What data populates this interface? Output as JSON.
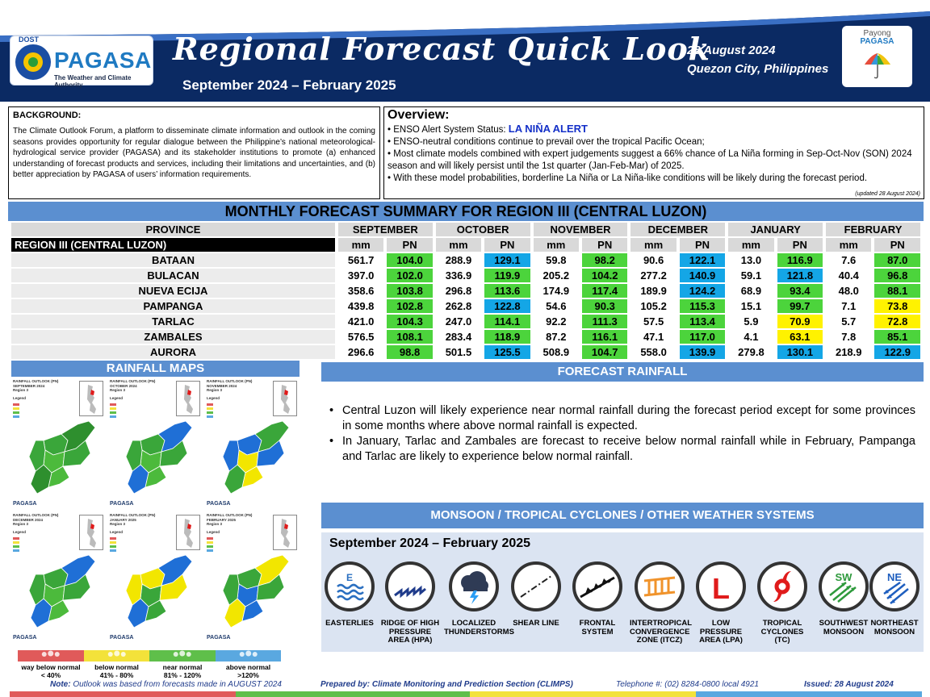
{
  "header": {
    "logo_dost": "DOST",
    "logo_name": "PAGASA",
    "logo_tagline": "The Weather and Climate Authority",
    "title": "Regional Forecast Quick Look",
    "subtitle": "September 2024 – February 2025",
    "date": "28 August 2024",
    "place": "Quezon City, Philippines",
    "payong_line1": "Payong",
    "payong_line2": "PAGASA"
  },
  "background": {
    "title": "BACKGROUND:",
    "text": "The Climate Outlook Forum, a platform to disseminate climate information and outlook in the coming seasons provides opportunity for regular dialogue between the Philippine’s national meteorological-hydrological service provider (PAGASA) and its stakeholder institutions to promote (a) enhanced understanding of forecast products and services, including their limitations and uncertainties, and (b) better appreciation by PAGASA of users’ information requirements."
  },
  "overview": {
    "title": "Overview:",
    "enso_label": "ENSO Alert System Status: ",
    "enso_status": "LA NIÑA ALERT",
    "items": [
      "ENSO-neutral conditions continue to prevail over the tropical Pacific Ocean;",
      "Most climate models combined with expert judgements suggest a 66% chance of La Niña forming in Sep-Oct-Nov (SON) 2024 season and will likely persist until the 1st quarter (Jan-Feb-Mar) of 2025.",
      "With these model probabilities, borderline La Niña or La Niña-like conditions will be likely during the forecast period."
    ],
    "updated": "(updated 28 August 2024)"
  },
  "monthly": {
    "title": "MONTHLY FORECAST SUMMARY FOR REGION III (CENTRAL LUZON)",
    "province_header": "PROVINCE",
    "region_label": "REGION III (CENTRAL LUZON)",
    "months": [
      "SEPTEMBER",
      "OCTOBER",
      "NOVEMBER",
      "DECEMBER",
      "JANUARY",
      "FEBRUARY"
    ],
    "unit_mm": "mm",
    "unit_pn": "PN",
    "rows": [
      {
        "province": "BATAAN",
        "values": [
          [
            "561.7",
            "104.0",
            "g"
          ],
          [
            "288.9",
            "129.1",
            "b"
          ],
          [
            "59.8",
            "98.2",
            "g"
          ],
          [
            "90.6",
            "122.1",
            "b"
          ],
          [
            "13.0",
            "116.9",
            "g"
          ],
          [
            "7.6",
            "87.0",
            "g"
          ]
        ]
      },
      {
        "province": "BULACAN",
        "values": [
          [
            "397.0",
            "102.0",
            "g"
          ],
          [
            "336.9",
            "119.9",
            "g"
          ],
          [
            "205.2",
            "104.2",
            "g"
          ],
          [
            "277.2",
            "140.9",
            "b"
          ],
          [
            "59.1",
            "121.8",
            "b"
          ],
          [
            "40.4",
            "96.8",
            "g"
          ]
        ]
      },
      {
        "province": "NUEVA ECIJA",
        "values": [
          [
            "358.6",
            "103.8",
            "g"
          ],
          [
            "296.8",
            "113.6",
            "g"
          ],
          [
            "174.9",
            "117.4",
            "g"
          ],
          [
            "189.9",
            "124.2",
            "b"
          ],
          [
            "68.9",
            "93.4",
            "g"
          ],
          [
            "48.0",
            "88.1",
            "g"
          ]
        ]
      },
      {
        "province": "PAMPANGA",
        "values": [
          [
            "439.8",
            "102.8",
            "g"
          ],
          [
            "262.8",
            "122.8",
            "b"
          ],
          [
            "54.6",
            "90.3",
            "g"
          ],
          [
            "105.2",
            "115.3",
            "g"
          ],
          [
            "15.1",
            "99.7",
            "g"
          ],
          [
            "7.1",
            "73.8",
            "y"
          ]
        ]
      },
      {
        "province": "TARLAC",
        "values": [
          [
            "421.0",
            "104.3",
            "g"
          ],
          [
            "247.0",
            "114.1",
            "g"
          ],
          [
            "92.2",
            "111.3",
            "g"
          ],
          [
            "57.5",
            "113.4",
            "g"
          ],
          [
            "5.9",
            "70.9",
            "y"
          ],
          [
            "5.7",
            "72.8",
            "y"
          ]
        ]
      },
      {
        "province": "ZAMBALES",
        "values": [
          [
            "576.5",
            "108.1",
            "g"
          ],
          [
            "283.4",
            "118.9",
            "g"
          ],
          [
            "87.2",
            "116.1",
            "g"
          ],
          [
            "47.1",
            "117.0",
            "g"
          ],
          [
            "4.1",
            "63.1",
            "y"
          ],
          [
            "7.8",
            "85.1",
            "g"
          ]
        ]
      },
      {
        "province": "AURORA",
        "values": [
          [
            "296.6",
            "98.8",
            "g"
          ],
          [
            "501.5",
            "125.5",
            "b"
          ],
          [
            "508.9",
            "104.7",
            "g"
          ],
          [
            "558.0",
            "139.9",
            "b"
          ],
          [
            "279.8",
            "130.1",
            "b"
          ],
          [
            "218.9",
            "122.9",
            "b"
          ]
        ]
      }
    ]
  },
  "rainfall_maps": {
    "title": "RAINFALL MAPS",
    "maps": [
      {
        "head1": "RAINFALL OUTLOOK (PN)",
        "head2": "SEPTEMBER 2024",
        "head3": "Region 3",
        "legend": "Legend",
        "foot": "PAGASA",
        "palette": [
          "#3aa63a",
          "#2e8f2e",
          "#4cba3c"
        ]
      },
      {
        "head1": "RAINFALL OUTLOOK (PN)",
        "head2": "OCTOBER 2024",
        "head3": "Region 3",
        "legend": "Legend",
        "foot": "PAGASA",
        "palette": [
          "#3aa63a",
          "#1f6fd6",
          "#4cba3c"
        ]
      },
      {
        "head1": "RAINFALL OUTLOOK (PN)",
        "head2": "NOVEMBER 2024",
        "head3": "Region 3",
        "legend": "Legend",
        "foot": "PAGASA",
        "palette": [
          "#1f6fd6",
          "#3aa63a",
          "#f2e600"
        ]
      },
      {
        "head1": "RAINFALL OUTLOOK (PN)",
        "head2": "DECEMBER 2024",
        "head3": "Region 3",
        "legend": "Legend",
        "foot": "PAGASA",
        "palette": [
          "#3aa63a",
          "#1f6fd6",
          "#4cba3c"
        ]
      },
      {
        "head1": "RAINFALL OUTLOOK (PN)",
        "head2": "JANUARY 2025",
        "head3": "Region 3",
        "legend": "Legend",
        "foot": "PAGASA",
        "palette": [
          "#f2e600",
          "#1f6fd6",
          "#3aa63a"
        ]
      },
      {
        "head1": "RAINFALL OUTLOOK (PN)",
        "head2": "FEBRUARY 2025",
        "head3": "Region 3",
        "legend": "Legend",
        "foot": "PAGASA",
        "palette": [
          "#3aa63a",
          "#f2e600",
          "#1f6fd6"
        ]
      }
    ],
    "legend": [
      {
        "label1": "way below normal",
        "label2": "< 40%",
        "color": "#e05a5a"
      },
      {
        "label1": "below normal",
        "label2": "41% - 80%",
        "color": "#f3e23a"
      },
      {
        "label1": "near normal",
        "label2": "81% - 120%",
        "color": "#5fbf4a"
      },
      {
        "label1": "above normal",
        "label2": ">120%",
        "color": "#5aa8e0"
      }
    ]
  },
  "forecast_rainfall": {
    "title": "FORECAST RAINFALL",
    "items": [
      "Central Luzon will likely experience near normal rainfall during the forecast period except for some provinces in some months where above normal rainfall is expected.",
      "In January, Tarlac and Zambales are forecast to receive below normal rainfall while in February, Pampanga and Tarlac are likely to experience below normal rainfall."
    ]
  },
  "systems": {
    "title": "MONSOON  / TROPICAL CYCLONES / OTHER WEATHER SYSTEMS",
    "period": "September 2024 – February 2025",
    "items": [
      {
        "label": "EASTERLIES",
        "icon": "easterlies-icon"
      },
      {
        "label": "RIDGE OF HIGH PRESSURE AREA (HPA)",
        "icon": "ridge-icon"
      },
      {
        "label": "LOCALIZED THUNDERSTORMS",
        "icon": "thunderstorm-icon"
      },
      {
        "label": "SHEAR LINE",
        "icon": "shear-line-icon"
      },
      {
        "label": "FRONTAL SYSTEM",
        "icon": "frontal-system-icon"
      },
      {
        "label": "INTERTROPICAL CONVERGENCE ZONE (ITCZ)",
        "icon": "itcz-icon"
      },
      {
        "label": "LOW PRESSURE AREA (LPA)",
        "icon": "lpa-icon"
      },
      {
        "label": "TROPICAL CYCLONES (TC)",
        "icon": "tropical-cyclone-icon"
      },
      {
        "label": "SOUTHWEST MONSOON",
        "icon": "southwest-monsoon-icon"
      },
      {
        "label": "NORTHEAST MONSOON",
        "icon": "northeast-monsoon-icon"
      }
    ],
    "icon_text": {
      "e": "E",
      "l": "L",
      "sw": "SW",
      "ne": "NE"
    }
  },
  "footer": {
    "note_label": "Note:",
    "note": " Outlook was based from forecasts made in AUGUST 2024",
    "prepared": "Prepared by: Climate Monitoring and Prediction Section (CLIMPS)",
    "telephone": "Telephone #: (02) 8284-0800 local 4921",
    "issued": "Issued: 28 August 2024"
  }
}
